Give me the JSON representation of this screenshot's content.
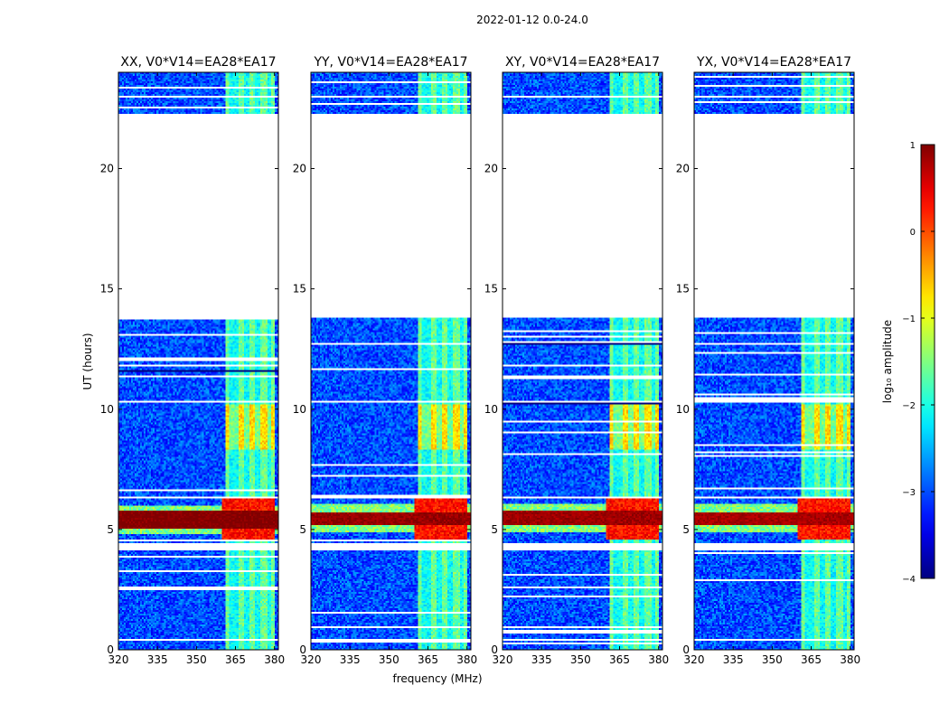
{
  "chart_data": {
    "type": "heatmap",
    "title": "2022-01-12 0.0-24.0",
    "xlabel": "frequency (MHz)",
    "ylabel": "UT (hours)",
    "xlim": [
      320,
      381.5
    ],
    "ylim": [
      0,
      24
    ],
    "xticks": [
      320,
      335,
      350,
      365,
      380
    ],
    "yticks": [
      0,
      5,
      10,
      15,
      20
    ],
    "panels": [
      {
        "title": "XX, V0*V14=EA28*EA17",
        "flare_low_ut": 5.0,
        "flare_high_ut": 5.75,
        "flare_intensity": 1.0
      },
      {
        "title": "YY, V0*V14=EA28*EA17",
        "flare_low_ut": 5.2,
        "flare_high_ut": 5.7,
        "flare_intensity": 0.85
      },
      {
        "title": "XY, V0*V14=EA28*EA17",
        "flare_low_ut": 5.2,
        "flare_high_ut": 5.8,
        "flare_intensity": 0.8
      },
      {
        "title": "YX, V0*V14=EA28*EA17",
        "flare_low_ut": 5.2,
        "flare_high_ut": 5.7,
        "flare_intensity": 0.75
      }
    ],
    "data_gaps_ut": [
      [
        0.35,
        0.45
      ],
      [
        4.15,
        4.45
      ],
      [
        6.3,
        6.4
      ],
      [
        10.25,
        10.35
      ],
      [
        13.8,
        22.3
      ],
      [
        22.95,
        23.05
      ]
    ],
    "rfi_band_mhz": [
      361,
      380
    ],
    "rfi_channel_mhz": [
      361.5,
      367,
      371.5,
      376,
      380
    ],
    "colorbar": {
      "label": "log₁₀ amplitude",
      "range": [
        -4,
        1
      ],
      "ticks": [
        1,
        0,
        -1,
        -2,
        -3,
        -4
      ],
      "tick_labels": [
        "1",
        "0",
        "−1",
        "−2",
        "−3",
        "−4"
      ],
      "colormap": "jet"
    }
  }
}
